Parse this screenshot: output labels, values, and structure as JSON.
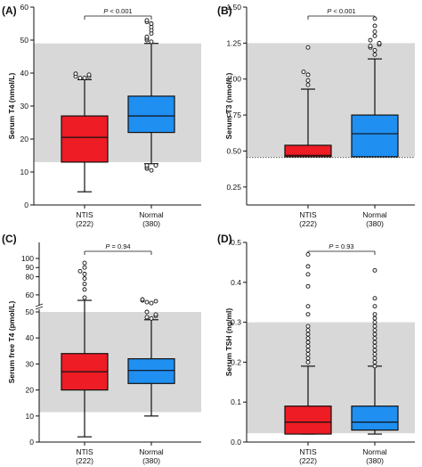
{
  "colors": {
    "ntis": "#ee1c24",
    "normal": "#1f8ff2",
    "ref_band": "#d8d8d8",
    "axis": "#111111"
  },
  "chart_data": [
    {
      "type": "box",
      "label": "(A)",
      "ylabel": "Serum T4 (nmol/L)",
      "ylim": [
        0,
        60
      ],
      "yticks": [
        {
          "v": 0,
          "t": "0"
        },
        {
          "v": 10,
          "t": "10"
        },
        {
          "v": 20,
          "t": "20"
        },
        {
          "v": 30,
          "t": "30"
        },
        {
          "v": 40,
          "t": "40"
        },
        {
          "v": 50,
          "t": "50"
        },
        {
          "v": 60,
          "t": "60"
        }
      ],
      "reference_band": [
        13,
        49
      ],
      "reference_line": null,
      "p_prefix": "P",
      "p_text": " < 0.001",
      "categories": [
        {
          "name": "NTIS",
          "n": "(222)",
          "q1": 13,
          "median": 20.5,
          "q3": 27,
          "whisker_low": 4,
          "whisker_high": 38,
          "outliers": [
            38.5,
            38.5,
            39,
            39,
            39.5,
            39.8
          ]
        },
        {
          "name": "Normal",
          "n": "(380)",
          "q1": 22,
          "median": 27,
          "q3": 33,
          "whisker_low": 12.5,
          "whisker_high": 49,
          "outliers": [
            10.5,
            11,
            11.5,
            12,
            12,
            49.5,
            50,
            50.5,
            51,
            52,
            53,
            54,
            55,
            55.5,
            56
          ]
        }
      ]
    },
    {
      "type": "box",
      "label": "(B)",
      "ylabel": "Serum T3 (nmol/L)",
      "ylim": [
        0.125,
        1.5
      ],
      "yticks": [
        {
          "v": 0.25,
          "t": "0.25"
        },
        {
          "v": 0.5,
          "t": "0.50"
        },
        {
          "v": 0.75,
          "t": "0.75"
        },
        {
          "v": 1.0,
          "t": "1.00"
        },
        {
          "v": 1.25,
          "t": "1.25"
        },
        {
          "v": 1.5,
          "t": "1.50"
        }
      ],
      "reference_band": [
        0.46,
        1.25
      ],
      "reference_line": 0.455,
      "p_prefix": "P",
      "p_text": " < 0.001",
      "categories": [
        {
          "name": "NTIS",
          "n": "(222)",
          "q1": 0.46,
          "median": 0.47,
          "q3": 0.54,
          "whisker_low": 0.46,
          "whisker_high": 0.93,
          "outliers": [
            0.96,
            0.99,
            1.03,
            1.05,
            1.22
          ]
        },
        {
          "name": "Normal",
          "n": "(380)",
          "q1": 0.46,
          "median": 0.62,
          "q3": 0.75,
          "whisker_low": 0.46,
          "whisker_high": 1.14,
          "outliers": [
            1.17,
            1.2,
            1.22,
            1.23,
            1.24,
            1.25,
            1.27,
            1.3,
            1.33,
            1.37,
            1.42
          ]
        }
      ]
    },
    {
      "type": "box",
      "label": "(C)",
      "ylabel": "Serum free T4 (pmol/L)",
      "ylim": [
        0,
        50
      ],
      "yticks": [
        {
          "v": 0,
          "t": "0"
        },
        {
          "v": 10,
          "t": "10"
        },
        {
          "v": 20,
          "t": "20"
        },
        {
          "v": 30,
          "t": "30"
        },
        {
          "v": 40,
          "t": "40"
        },
        {
          "v": 50,
          "t": "50"
        }
      ],
      "broken_axis_ticks": [
        {
          "v": 60,
          "t": "60"
        },
        {
          "v": 80,
          "t": "80"
        },
        {
          "v": 90,
          "t": "90"
        },
        {
          "v": 100,
          "t": "100"
        }
      ],
      "reference_band": [
        11.5,
        50
      ],
      "reference_line": null,
      "p_prefix": "P",
      "p_text": " = 0.94",
      "categories": [
        {
          "name": "NTIS",
          "n": "(222)",
          "q1": 20,
          "median": 27,
          "q3": 34,
          "whisker_low": 2,
          "whisker_high": 54,
          "outliers": [
            57,
            66,
            72,
            78,
            83,
            86,
            90,
            95
          ]
        },
        {
          "name": "Normal",
          "n": "(380)",
          "q1": 22.5,
          "median": 27.5,
          "q3": 32,
          "whisker_low": 10,
          "whisker_high": 47,
          "outliers": [
            47.5,
            48,
            48.5,
            49,
            50,
            51,
            52,
            53,
            54,
            55
          ]
        }
      ]
    },
    {
      "type": "box",
      "label": "(D)",
      "ylabel": "Serum TSH (ng/ml)",
      "ylim": [
        0,
        0.5
      ],
      "yticks": [
        {
          "v": 0,
          "t": "0.0"
        },
        {
          "v": 0.1,
          "t": "0.1"
        },
        {
          "v": 0.2,
          "t": "0.2"
        },
        {
          "v": 0.3,
          "t": "0.3"
        },
        {
          "v": 0.4,
          "t": "0.4"
        },
        {
          "v": 0.5,
          "t": "0.5"
        }
      ],
      "reference_band": [
        0.022,
        0.3
      ],
      "reference_line": null,
      "p_prefix": "P",
      "p_text": " = 0.93",
      "categories": [
        {
          "name": "NTIS",
          "n": "(222)",
          "q1": 0.02,
          "median": 0.05,
          "q3": 0.09,
          "whisker_low": 0.02,
          "whisker_high": 0.19,
          "outliers": [
            0.2,
            0.21,
            0.22,
            0.23,
            0.24,
            0.25,
            0.26,
            0.27,
            0.28,
            0.29,
            0.32,
            0.34,
            0.39,
            0.42,
            0.44,
            0.47
          ]
        },
        {
          "name": "Normal",
          "n": "(380)",
          "q1": 0.03,
          "median": 0.05,
          "q3": 0.09,
          "whisker_low": 0.02,
          "whisker_high": 0.19,
          "outliers": [
            0.19,
            0.2,
            0.21,
            0.22,
            0.23,
            0.24,
            0.25,
            0.26,
            0.27,
            0.28,
            0.29,
            0.3,
            0.31,
            0.32,
            0.34,
            0.36,
            0.43
          ]
        }
      ]
    }
  ]
}
